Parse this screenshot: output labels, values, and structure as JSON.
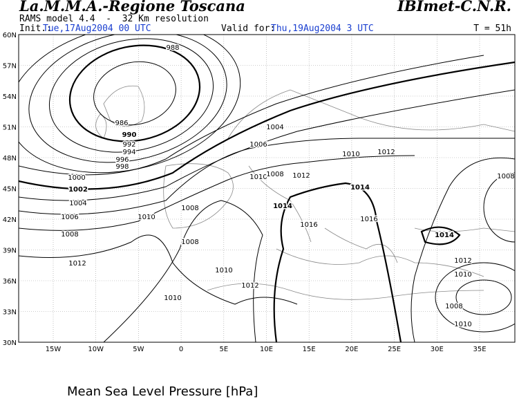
{
  "header": {
    "title": "La.M.M.A.-Regione Toscana",
    "institute": "IBImet-C.N.R.",
    "model": "RAMS model 4.4  -  32 Km resolution",
    "init_label": "Init.:",
    "init_time": "Tue,17Aug2004 00 UTC",
    "valid_label": "Valid for:",
    "valid_time": "Thu,19Aug2004 3 UTC",
    "forecast_hour": "T = 51h"
  },
  "map": {
    "lat_labels": [
      "60N",
      "57N",
      "54N",
      "51N",
      "48N",
      "45N",
      "42N",
      "39N",
      "36N",
      "33N",
      "30N"
    ],
    "lon_labels": [
      "15W",
      "10W",
      "5W",
      "0",
      "5E",
      "10E",
      "15E",
      "20E",
      "25E",
      "30E",
      "35E"
    ],
    "contour_labels": [
      "988",
      "986",
      "990",
      "992",
      "994",
      "996",
      "998",
      "1000",
      "1002",
      "1004",
      "1006",
      "1008",
      "1012",
      "1010",
      "1010",
      "1012",
      "1008",
      "1010",
      "1008",
      "1004",
      "1006",
      "1010",
      "1012",
      "1010",
      "1008",
      "1012",
      "1014",
      "1016",
      "1014",
      "1016",
      "1014",
      "1012",
      "1010",
      "1008",
      "1010",
      "1008"
    ]
  },
  "caption": "Mean Sea Level Pressure [hPa]"
}
